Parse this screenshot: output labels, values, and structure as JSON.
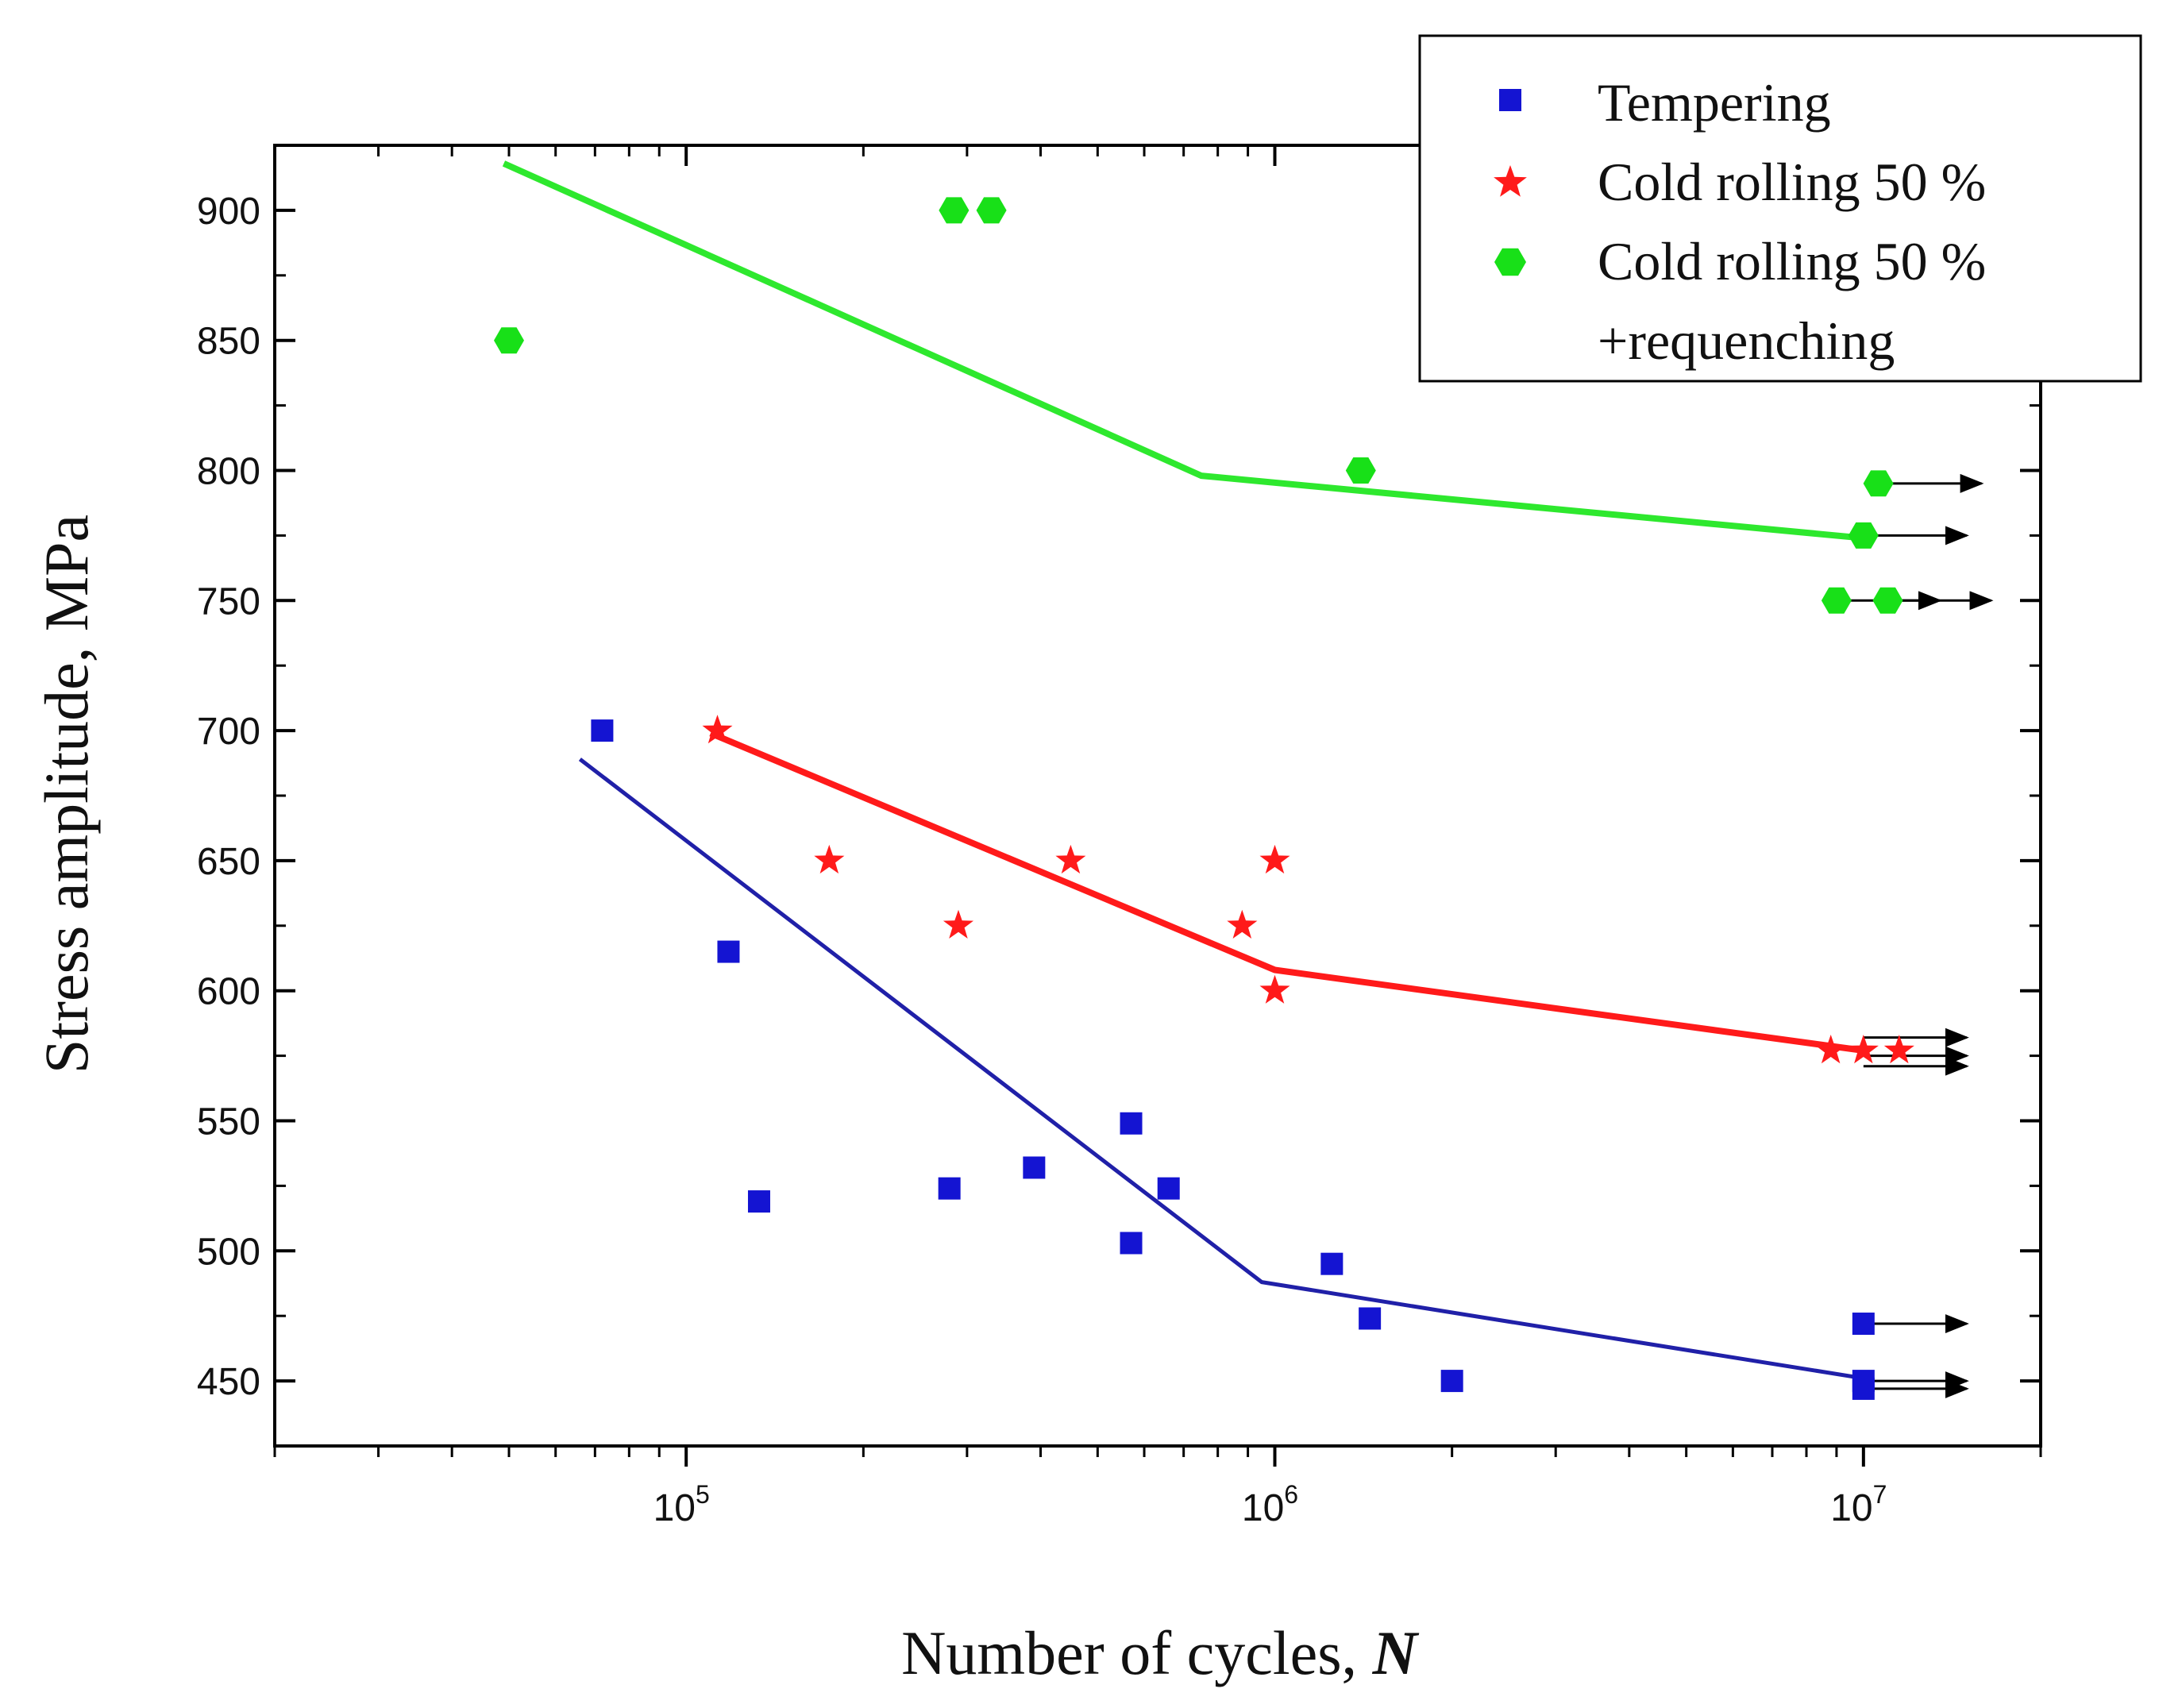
{
  "chart_data": {
    "type": "scatter",
    "title": "",
    "xlabel": "Number of cycles, ",
    "xlabel_italic": "N",
    "ylabel": "Stress amplitude, MPa",
    "x_scale": "log",
    "xlim": [
      20000,
      20000000
    ],
    "ylim": [
      425,
      925
    ],
    "x_ticks": [
      {
        "base": "10",
        "exp": "5",
        "value": 100000
      },
      {
        "base": "10",
        "exp": "6",
        "value": 1000000
      },
      {
        "base": "10",
        "exp": "7",
        "value": 10000000
      }
    ],
    "y_ticks": [
      "450",
      "500",
      "550",
      "600",
      "650",
      "700",
      "750",
      "800",
      "850",
      "900"
    ],
    "grid": false,
    "legend_position": "top-right",
    "series": [
      {
        "name": "Tempering",
        "color": "#1414d2",
        "line_color": "#2020a8",
        "marker": "square",
        "points": [
          [
            72000,
            700
          ],
          [
            118000,
            615
          ],
          [
            133000,
            519
          ],
          [
            280000,
            524
          ],
          [
            390000,
            532
          ],
          [
            570000,
            549
          ],
          [
            570000,
            503
          ],
          [
            660000,
            524
          ],
          [
            1250000,
            495
          ],
          [
            1450000,
            474
          ],
          [
            2000000,
            450
          ],
          [
            10000000,
            472
          ],
          [
            10000000,
            450
          ],
          [
            10000000,
            447
          ]
        ],
        "fit_line": [
          [
            66000,
            689
          ],
          [
            950000,
            488
          ],
          [
            10000000,
            451
          ]
        ],
        "runouts": [
          [
            10000000,
            472
          ],
          [
            10000000,
            450
          ],
          [
            10000000,
            447
          ]
        ]
      },
      {
        "name": "Cold rolling 50 %",
        "color": "#ff1a1a",
        "line_color": "#ff1a1a",
        "marker": "star",
        "points": [
          [
            113000,
            700
          ],
          [
            175000,
            650
          ],
          [
            290000,
            625
          ],
          [
            450000,
            650
          ],
          [
            880000,
            625
          ],
          [
            1000000,
            650
          ],
          [
            1000000,
            600
          ],
          [
            8800000,
            577
          ],
          [
            10000000,
            577
          ],
          [
            11500000,
            577
          ]
        ],
        "fit_line": [
          [
            110000,
            699
          ],
          [
            1000000,
            608
          ],
          [
            10000000,
            577
          ]
        ],
        "runouts": [
          [
            10000000,
            582
          ],
          [
            10000000,
            575
          ],
          [
            10000000,
            571
          ]
        ]
      },
      {
        "name": "Cold rolling 50 %",
        "name_line2": "+requenching",
        "color": "#18e018",
        "line_color": "#2ee82e",
        "marker": "hexagon",
        "points": [
          [
            50000,
            850
          ],
          [
            285000,
            900
          ],
          [
            330000,
            900
          ],
          [
            1400000,
            800
          ],
          [
            10600000,
            795
          ],
          [
            10000000,
            775
          ],
          [
            9000000,
            750
          ],
          [
            11000000,
            750
          ]
        ],
        "fit_line": [
          [
            49000,
            918
          ],
          [
            750000,
            798
          ],
          [
            10000000,
            774
          ]
        ],
        "runouts": [
          [
            10600000,
            795
          ],
          [
            10000000,
            775
          ],
          [
            9000000,
            750
          ],
          [
            11000000,
            750
          ]
        ]
      }
    ]
  }
}
